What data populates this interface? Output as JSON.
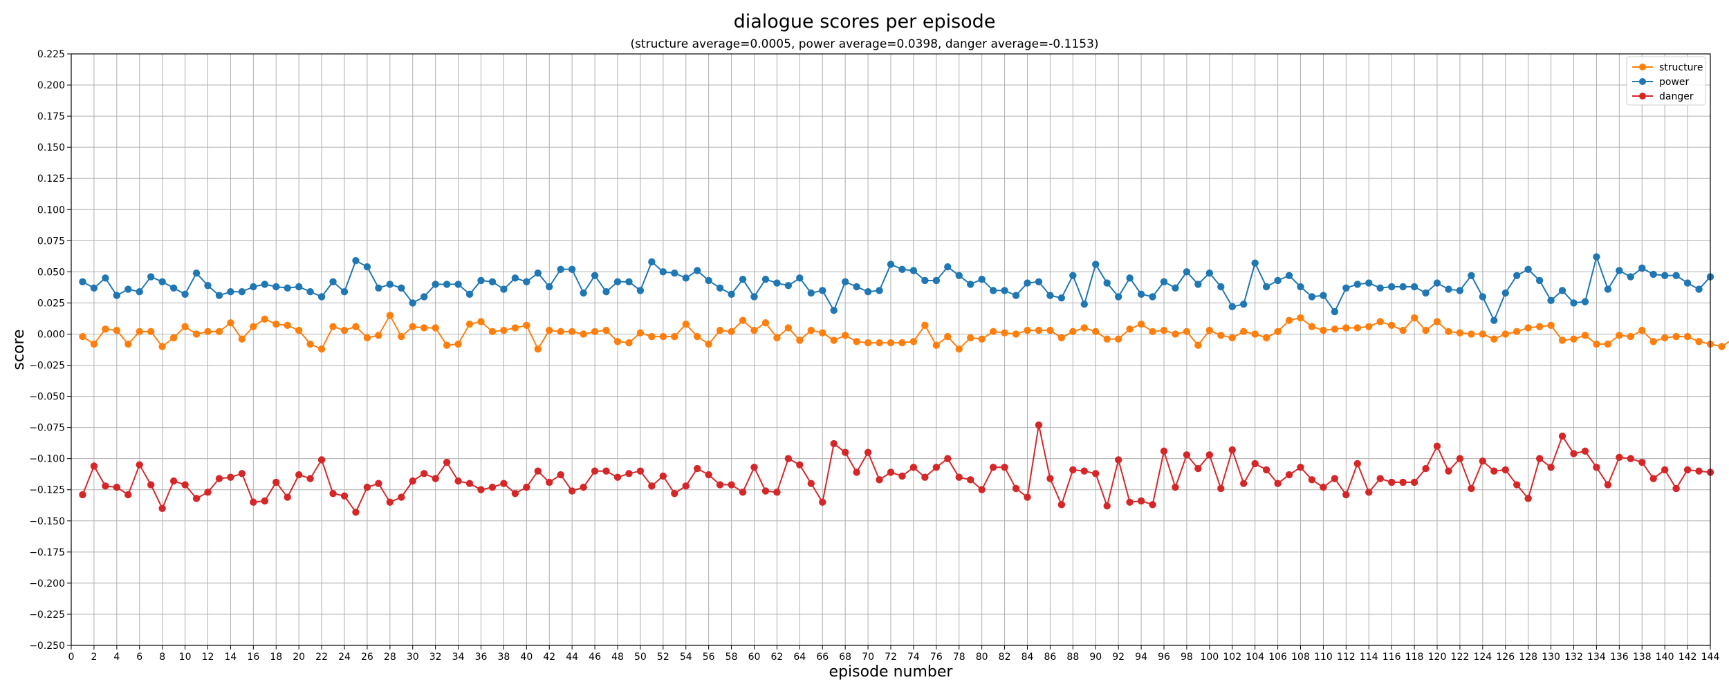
{
  "chart_data": {
    "type": "line",
    "title": "dialogue scores per episode",
    "subtitle": "(structure average=0.0005, power average=0.0398, danger average=-0.1153)",
    "xlabel": "episode number",
    "ylabel": "score",
    "xlim": [
      0,
      144
    ],
    "ylim": [
      -0.25,
      0.225
    ],
    "xticks": [
      0,
      2,
      4,
      6,
      8,
      10,
      12,
      14,
      16,
      18,
      20,
      22,
      24,
      26,
      28,
      30,
      32,
      34,
      36,
      38,
      40,
      42,
      44,
      46,
      48,
      50,
      52,
      54,
      56,
      58,
      60,
      62,
      64,
      66,
      68,
      70,
      72,
      74,
      76,
      78,
      80,
      82,
      84,
      86,
      88,
      90,
      92,
      94,
      96,
      98,
      100,
      102,
      104,
      106,
      108,
      110,
      112,
      114,
      116,
      118,
      120,
      122,
      124,
      126,
      128,
      130,
      132,
      134,
      136,
      138,
      140,
      142,
      144
    ],
    "yticks": [
      "0.225",
      "0.200",
      "0.175",
      "0.150",
      "0.125",
      "0.100",
      "0.075",
      "0.050",
      "0.025",
      "0.000",
      "−0.025",
      "−0.050",
      "−0.075",
      "−0.100",
      "−0.125",
      "−0.150",
      "−0.175",
      "−0.200",
      "−0.225",
      "−0.250"
    ],
    "ytick_values": [
      0.225,
      0.2,
      0.175,
      0.15,
      0.125,
      0.1,
      0.075,
      0.05,
      0.025,
      0.0,
      -0.025,
      -0.05,
      -0.075,
      -0.1,
      -0.125,
      -0.15,
      -0.175,
      -0.2,
      -0.225,
      -0.25
    ],
    "grid": true,
    "legend_position": "top-right",
    "x_start": 1,
    "series": [
      {
        "name": "structure",
        "color": "#ff7f0e",
        "values": [
          -0.002,
          -0.008,
          0.004,
          0.003,
          -0.008,
          0.002,
          0.002,
          -0.01,
          -0.003,
          0.006,
          0.0,
          0.002,
          0.002,
          0.009,
          -0.004,
          0.006,
          0.012,
          0.008,
          0.007,
          0.003,
          -0.008,
          -0.012,
          0.006,
          0.003,
          0.006,
          -0.003,
          -0.001,
          0.015,
          -0.002,
          0.006,
          0.005,
          0.005,
          -0.009,
          -0.008,
          0.008,
          0.01,
          0.002,
          0.003,
          0.005,
          0.007,
          -0.012,
          0.003,
          0.002,
          0.002,
          0.0,
          0.002,
          0.003,
          -0.006,
          -0.007,
          0.001,
          -0.002,
          -0.002,
          -0.002,
          0.008,
          -0.002,
          -0.008,
          0.003,
          0.002,
          0.011,
          0.003,
          0.009,
          -0.003,
          0.005,
          -0.005,
          0.003,
          0.001,
          -0.005,
          -0.001,
          -0.006,
          -0.007,
          -0.007,
          -0.007,
          -0.007,
          -0.006,
          0.007,
          -0.009,
          -0.002,
          -0.012,
          -0.003,
          -0.004,
          0.002,
          0.001,
          0.0,
          0.003,
          0.003,
          0.003,
          -0.003,
          0.002,
          0.005,
          0.002,
          -0.004,
          -0.004,
          0.004,
          0.008,
          0.002,
          0.003,
          0.0,
          0.002,
          -0.009,
          0.003,
          -0.001,
          -0.003,
          0.002,
          0.0,
          -0.003,
          0.002,
          0.011,
          0.013,
          0.006,
          0.003,
          0.004,
          0.005,
          0.005,
          0.006,
          0.01,
          0.007,
          0.003,
          0.013,
          0.003,
          0.01,
          0.002,
          0.001,
          0.0,
          0.0,
          -0.004,
          0.0,
          0.002,
          0.005,
          0.006,
          0.007,
          -0.005,
          -0.004,
          -0.001,
          -0.008,
          -0.008,
          -0.001,
          -0.002,
          0.003,
          -0.006,
          -0.003,
          -0.002,
          -0.002,
          -0.006,
          -0.008,
          -0.01,
          -0.004
        ]
      },
      {
        "name": "power",
        "color": "#1f77b4",
        "values": [
          0.042,
          0.037,
          0.045,
          0.031,
          0.036,
          0.034,
          0.046,
          0.042,
          0.037,
          0.032,
          0.049,
          0.039,
          0.031,
          0.034,
          0.034,
          0.038,
          0.04,
          0.038,
          0.037,
          0.038,
          0.034,
          0.03,
          0.042,
          0.034,
          0.059,
          0.054,
          0.037,
          0.04,
          0.037,
          0.025,
          0.03,
          0.04,
          0.04,
          0.04,
          0.032,
          0.043,
          0.042,
          0.036,
          0.045,
          0.042,
          0.049,
          0.038,
          0.052,
          0.052,
          0.033,
          0.047,
          0.034,
          0.042,
          0.042,
          0.035,
          0.058,
          0.05,
          0.049,
          0.045,
          0.051,
          0.043,
          0.037,
          0.032,
          0.044,
          0.03,
          0.044,
          0.041,
          0.039,
          0.045,
          0.033,
          0.035,
          0.019,
          0.042,
          0.038,
          0.034,
          0.035,
          0.056,
          0.052,
          0.051,
          0.043,
          0.043,
          0.054,
          0.047,
          0.04,
          0.044,
          0.035,
          0.035,
          0.031,
          0.041,
          0.042,
          0.031,
          0.029,
          0.047,
          0.024,
          0.056,
          0.041,
          0.03,
          0.045,
          0.032,
          0.03,
          0.042,
          0.037,
          0.05,
          0.04,
          0.049,
          0.038,
          0.022,
          0.024,
          0.057,
          0.038,
          0.043,
          0.047,
          0.038,
          0.03,
          0.031,
          0.018,
          0.037,
          0.04,
          0.041,
          0.037,
          0.038,
          0.038,
          0.038,
          0.033,
          0.041,
          0.036,
          0.035,
          0.047,
          0.03,
          0.011,
          0.033,
          0.047,
          0.052,
          0.043,
          0.027,
          0.035,
          0.025,
          0.026,
          0.062,
          0.036,
          0.051,
          0.046,
          0.053,
          0.048,
          0.047,
          0.047,
          0.041,
          0.036,
          0.046
        ]
      },
      {
        "name": "danger",
        "color": "#d62728",
        "values": [
          -0.129,
          -0.106,
          -0.122,
          -0.123,
          -0.129,
          -0.105,
          -0.121,
          -0.14,
          -0.118,
          -0.121,
          -0.132,
          -0.127,
          -0.116,
          -0.115,
          -0.112,
          -0.135,
          -0.134,
          -0.119,
          -0.131,
          -0.113,
          -0.116,
          -0.101,
          -0.128,
          -0.13,
          -0.143,
          -0.123,
          -0.12,
          -0.135,
          -0.131,
          -0.118,
          -0.112,
          -0.116,
          -0.103,
          -0.118,
          -0.12,
          -0.125,
          -0.123,
          -0.12,
          -0.128,
          -0.123,
          -0.11,
          -0.119,
          -0.113,
          -0.126,
          -0.123,
          -0.11,
          -0.11,
          -0.115,
          -0.112,
          -0.11,
          -0.122,
          -0.114,
          -0.128,
          -0.122,
          -0.108,
          -0.113,
          -0.121,
          -0.121,
          -0.127,
          -0.107,
          -0.126,
          -0.127,
          -0.1,
          -0.105,
          -0.12,
          -0.135,
          -0.088,
          -0.095,
          -0.111,
          -0.095,
          -0.117,
          -0.111,
          -0.114,
          -0.107,
          -0.115,
          -0.107,
          -0.1,
          -0.115,
          -0.117,
          -0.125,
          -0.107,
          -0.107,
          -0.124,
          -0.131,
          -0.073,
          -0.116,
          -0.137,
          -0.109,
          -0.11,
          -0.112,
          -0.138,
          -0.101,
          -0.135,
          -0.134,
          -0.137,
          -0.094,
          -0.123,
          -0.097,
          -0.108,
          -0.097,
          -0.124,
          -0.093,
          -0.12,
          -0.104,
          -0.109,
          -0.12,
          -0.113,
          -0.107,
          -0.117,
          -0.123,
          -0.116,
          -0.129,
          -0.104,
          -0.127,
          -0.116,
          -0.119,
          -0.119,
          -0.119,
          -0.108,
          -0.09,
          -0.11,
          -0.1,
          -0.124,
          -0.102,
          -0.11,
          -0.109,
          -0.121,
          -0.132,
          -0.1,
          -0.107,
          -0.082,
          -0.096,
          -0.094,
          -0.107,
          -0.121,
          -0.099,
          -0.1,
          -0.103,
          -0.116,
          -0.109,
          -0.124,
          -0.109,
          -0.11,
          -0.111
        ]
      }
    ]
  }
}
